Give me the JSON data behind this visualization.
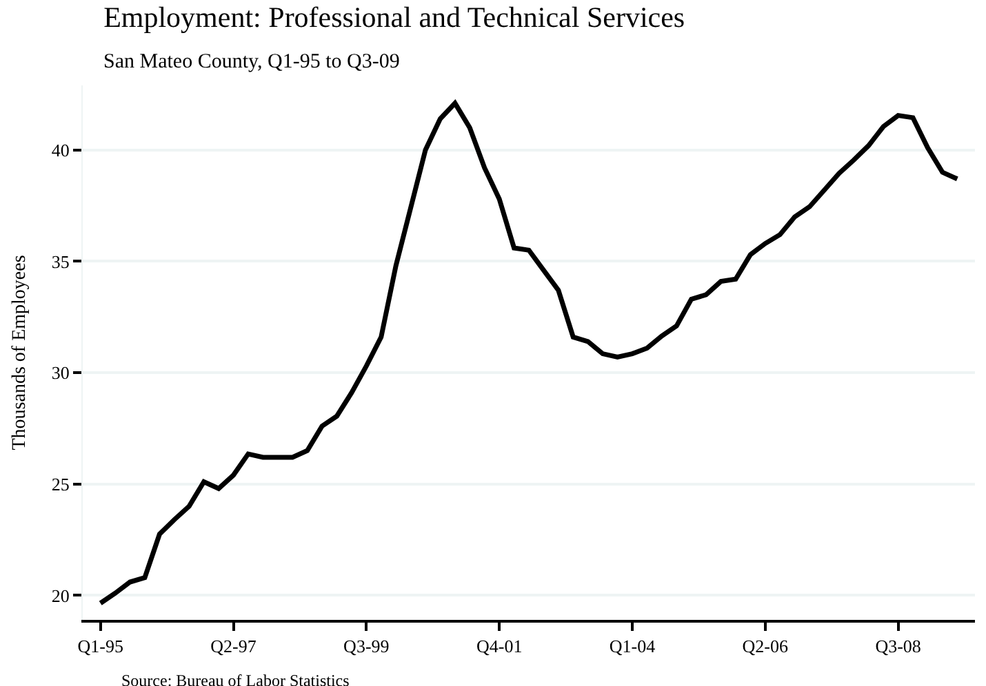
{
  "chart_data": {
    "type": "line",
    "title": "Employment: Professional and Technical Services",
    "subtitle": "San Mateo County, Q1-95 to Q3-09",
    "ylabel": "Thousands of Employees",
    "annotations": [
      "Source: Bureau of Labor Statistics"
    ],
    "categories": [
      "Q1-95",
      null,
      null,
      null,
      null,
      null,
      null,
      null,
      null,
      "Q2-97",
      null,
      null,
      null,
      null,
      null,
      null,
      null,
      null,
      "Q3-99",
      null,
      null,
      null,
      null,
      null,
      null,
      null,
      null,
      "Q4-01",
      null,
      null,
      null,
      null,
      null,
      null,
      null,
      null,
      "Q1-04",
      null,
      null,
      null,
      null,
      null,
      null,
      null,
      null,
      "Q2-06",
      null,
      null,
      null,
      null,
      null,
      null,
      null,
      null,
      "Q3-08",
      null,
      null,
      null,
      null
    ],
    "series": [
      {
        "color": "#000000",
        "values": [
          19.65,
          20.1,
          20.6,
          20.8,
          22.75,
          23.4,
          24.0,
          25.1,
          24.8,
          25.4,
          26.35,
          26.2,
          26.2,
          26.2,
          26.5,
          27.6,
          28.05,
          29.1,
          30.3,
          31.6,
          34.8,
          37.4,
          40.0,
          41.4,
          42.1,
          41.0,
          39.2,
          37.8,
          35.6,
          35.5,
          34.6,
          33.7,
          31.6,
          31.4,
          30.85,
          30.7,
          30.85,
          31.1,
          31.65,
          32.1,
          33.3,
          33.5,
          34.1,
          34.2,
          35.3,
          35.8,
          36.2,
          37.0,
          37.45,
          38.2,
          38.95,
          39.55,
          40.2,
          41.05,
          41.55,
          41.45,
          40.1,
          39.0,
          38.7
        ]
      }
    ],
    "ylim": [
      18.9,
      42.9
    ],
    "yticks": [
      20,
      25,
      30,
      35,
      40
    ],
    "grid": "y",
    "legend": false,
    "marker": "none",
    "line_style": "solid"
  }
}
